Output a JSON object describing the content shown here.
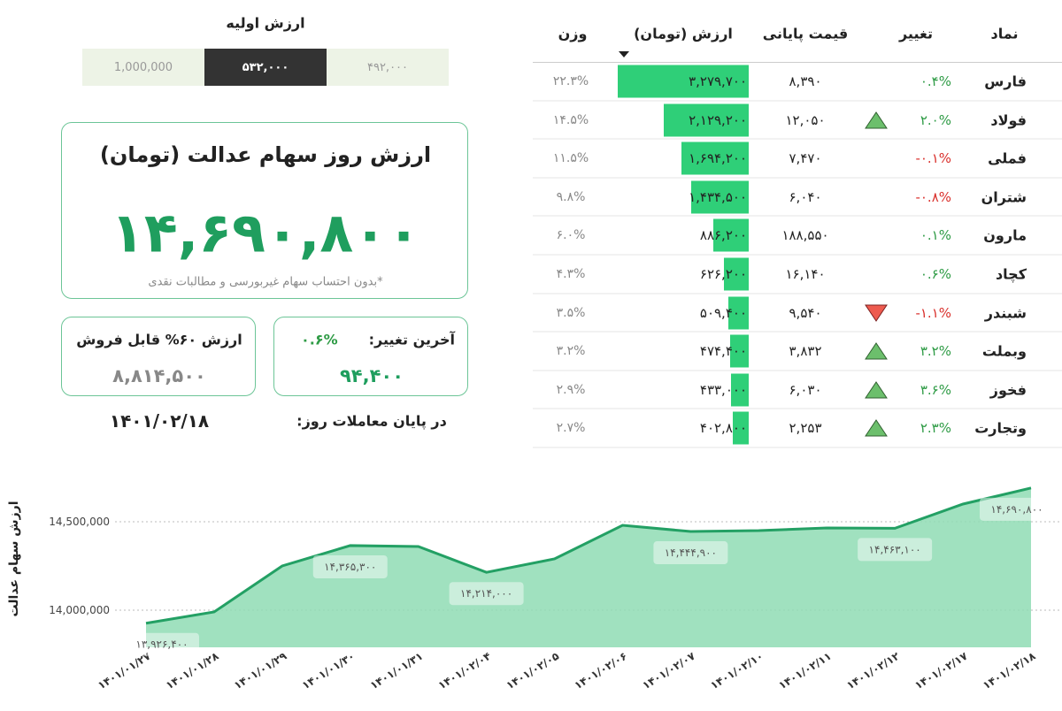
{
  "initial_value": {
    "title": "ارزش اولیه",
    "options": [
      "1,000,000",
      "۵۳۲,۰۰۰",
      "۴۹۲,۰۰۰"
    ],
    "selected": 1
  },
  "summary": {
    "title": "ارزش روز سهام عدالت (تومان)",
    "value": "۱۴,۶۹۰,۸۰۰",
    "note": "*بدون احتساب سهام غیربورسی و مطالبات نقدی"
  },
  "sellable": {
    "title": "ارزش ۶۰% قابل فروش",
    "value": "۸,۸۱۴,۵۰۰"
  },
  "last_change": {
    "label": "آخرین تغییر:",
    "percent": "۰.۶%",
    "value": "۹۴,۴۰۰"
  },
  "date": {
    "label": "در پایان معاملات روز:",
    "value": "۱۴۰۱/۰۲/۱۸"
  },
  "table": {
    "headers": [
      "نماد",
      "تغییر",
      "قیمت پایانی",
      "ارزش (تومان)",
      "وزن"
    ],
    "bar_color": "#2fcf78",
    "rows": [
      {
        "symbol": "فارس",
        "change": "۰.۴%",
        "change_color": "#2e9b45",
        "price": "۸,۳۹۰",
        "value": 3279700,
        "value_label": "۳,۲۷۹,۷۰۰",
        "weight": "۲۲.۳%"
      },
      {
        "symbol": "فولاد",
        "change": "۲.۰%",
        "change_color": "#2e9b45",
        "arrow": "up",
        "price": "۱۲,۰۵۰",
        "value": 2129200,
        "value_label": "۲,۱۲۹,۲۰۰",
        "weight": "۱۴.۵%"
      },
      {
        "symbol": "فملی",
        "change": "-۰.۱%",
        "change_color": "#d9302c",
        "price": "۷,۴۷۰",
        "value": 1694200,
        "value_label": "۱,۶۹۴,۲۰۰",
        "weight": "۱۱.۵%"
      },
      {
        "symbol": "شتران",
        "change": "-۰.۸%",
        "change_color": "#d9302c",
        "price": "۶,۰۴۰",
        "value": 1434500,
        "value_label": "۱,۴۳۴,۵۰۰",
        "weight": "۹.۸%"
      },
      {
        "symbol": "مارون",
        "change": "۰.۱%",
        "change_color": "#2e9b45",
        "price": "۱۸۸,۵۵۰",
        "value": 886200,
        "value_label": "۸۸۶,۲۰۰",
        "weight": "۶.۰%"
      },
      {
        "symbol": "کچاد",
        "change": "۰.۶%",
        "change_color": "#2e9b45",
        "price": "۱۶,۱۴۰",
        "value": 626200,
        "value_label": "۶۲۶,۲۰۰",
        "weight": "۴.۳%"
      },
      {
        "symbol": "شبندر",
        "change": "-۱.۱%",
        "change_color": "#d9302c",
        "arrow": "down",
        "price": "۹,۵۴۰",
        "value": 509400,
        "value_label": "۵۰۹,۴۰۰",
        "weight": "۳.۵%"
      },
      {
        "symbol": "وبملت",
        "change": "۳.۲%",
        "change_color": "#2e9b45",
        "arrow": "up",
        "price": "۳,۸۳۲",
        "value": 474400,
        "value_label": "۴۷۴,۴۰۰",
        "weight": "۳.۲%"
      },
      {
        "symbol": "فخوز",
        "change": "۳.۶%",
        "change_color": "#2e9b45",
        "arrow": "up",
        "price": "۶,۰۳۰",
        "value": 433000,
        "value_label": "۴۳۳,۰۰۰",
        "weight": "۲.۹%"
      },
      {
        "symbol": "وتجارت",
        "change": "۲.۳%",
        "change_color": "#2e9b45",
        "arrow": "up",
        "price": "۲,۲۵۳",
        "value": 402800,
        "value_label": "۴۰۲,۸۰۰",
        "weight": "۲.۷%"
      }
    ]
  },
  "chart_data": {
    "type": "area",
    "y_label": "ارزش سهام عدالت",
    "color": "#23a064",
    "fill": "#8fdcb4",
    "categories": [
      "۱۴۰۱/۰۱/۲۷",
      "۱۴۰۱/۰۱/۲۸",
      "۱۴۰۱/۰۱/۲۹",
      "۱۴۰۱/۰۱/۳۰",
      "۱۴۰۱/۰۱/۳۱",
      "۱۴۰۱/۰۲/۰۴",
      "۱۴۰۱/۰۲/۰۵",
      "۱۴۰۱/۰۲/۰۶",
      "۱۴۰۱/۰۲/۰۷",
      "۱۴۰۱/۰۲/۱۰",
      "۱۴۰۱/۰۲/۱۱",
      "۱۴۰۱/۰۲/۱۲",
      "۱۴۰۱/۰۲/۱۷",
      "۱۴۰۱/۰۲/۱۸"
    ],
    "values": [
      13926400,
      13990000,
      14250000,
      14365300,
      14360000,
      14214000,
      14290000,
      14480000,
      14444900,
      14450000,
      14465000,
      14463100,
      14600000,
      14690800
    ],
    "value_labels": [
      "۱۳,۹۲۶,۴۰۰",
      null,
      null,
      "۱۴,۳۶۵,۳۰۰",
      null,
      "۱۴,۲۱۴,۰۰۰",
      null,
      null,
      "۱۴,۴۴۴,۹۰۰",
      null,
      null,
      "۱۴,۴۶۳,۱۰۰",
      null,
      "۱۴,۶۹۰,۸۰۰"
    ],
    "ylim": [
      13790000,
      14750000
    ],
    "yticks": [
      {
        "value": 14000000,
        "label": "14,000,000"
      },
      {
        "value": 14500000,
        "label": "14,500,000"
      }
    ],
    "grid": true
  }
}
